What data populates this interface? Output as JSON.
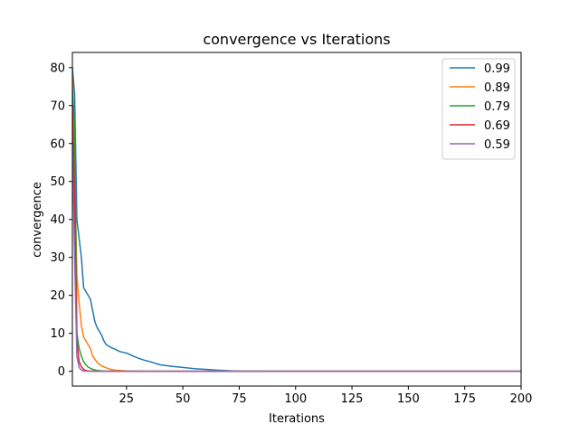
{
  "chart_data": {
    "type": "line",
    "title": "convergence vs Iterations",
    "xlabel": "Iterations",
    "ylabel": "convergence",
    "xlim": [
      1,
      200
    ],
    "ylim": [
      -3.9,
      84
    ],
    "xticks": [
      25,
      50,
      75,
      100,
      125,
      150,
      175,
      200
    ],
    "yticks": [
      0,
      10,
      20,
      30,
      40,
      50,
      60,
      70,
      80
    ],
    "grid": false,
    "legend_position": "top-right",
    "series": [
      {
        "name": "0.99",
        "color": "#1f77b4",
        "x": [
          1,
          2,
          3,
          4,
          5,
          6,
          7,
          8,
          9,
          10,
          11,
          12,
          13,
          14,
          15,
          16,
          17,
          18,
          20,
          22,
          25,
          28,
          30,
          33,
          35,
          40,
          45,
          50,
          55,
          60,
          65,
          70,
          75,
          80,
          100,
          150,
          200
        ],
        "y": [
          80,
          73,
          40,
          35,
          30,
          22,
          21,
          20,
          19,
          16,
          13,
          11.5,
          10.5,
          9.5,
          8,
          7,
          6.7,
          6.3,
          5.8,
          5.2,
          4.8,
          4,
          3.5,
          2.9,
          2.6,
          1.7,
          1.3,
          1.0,
          0.7,
          0.5,
          0.3,
          0.15,
          0.05,
          0.02,
          0,
          0,
          0
        ]
      },
      {
        "name": "0.89",
        "color": "#ff7f0e",
        "x": [
          1,
          2,
          3,
          4,
          5,
          6,
          7,
          8,
          9,
          10,
          12,
          14,
          16,
          18,
          20,
          25,
          30,
          40,
          50,
          100,
          150,
          200
        ],
        "y": [
          78,
          55,
          25,
          18,
          12,
          9,
          8,
          7,
          6,
          4,
          2.3,
          1.4,
          0.9,
          0.5,
          0.3,
          0.1,
          0.03,
          0,
          0,
          0,
          0,
          0
        ]
      },
      {
        "name": "0.79",
        "color": "#2ca02c",
        "x": [
          1,
          2,
          3,
          4,
          5,
          6,
          7,
          8,
          10,
          12,
          15,
          20,
          30,
          50,
          100,
          150,
          200
        ],
        "y": [
          74,
          65,
          10,
          6,
          4,
          2.5,
          1.7,
          1.1,
          0.5,
          0.2,
          0.05,
          0,
          0,
          0,
          0,
          0,
          0
        ]
      },
      {
        "name": "0.69",
        "color": "#d62728",
        "x": [
          1,
          2,
          3,
          4,
          5,
          6,
          7,
          8,
          10,
          15,
          20,
          50,
          100,
          150,
          200
        ],
        "y": [
          70,
          45,
          8,
          2.5,
          1.2,
          0.5,
          0.2,
          0.1,
          0.02,
          0,
          0,
          0,
          0,
          0,
          0
        ]
      },
      {
        "name": "0.59",
        "color": "#9467bd",
        "x": [
          1,
          2,
          3,
          4,
          5,
          6,
          7,
          8,
          10,
          15,
          20,
          50,
          100,
          150,
          200
        ],
        "y": [
          60,
          30,
          4,
          1,
          0.3,
          0.1,
          0.03,
          0,
          0,
          0,
          0,
          0,
          0,
          0,
          0
        ]
      }
    ]
  }
}
